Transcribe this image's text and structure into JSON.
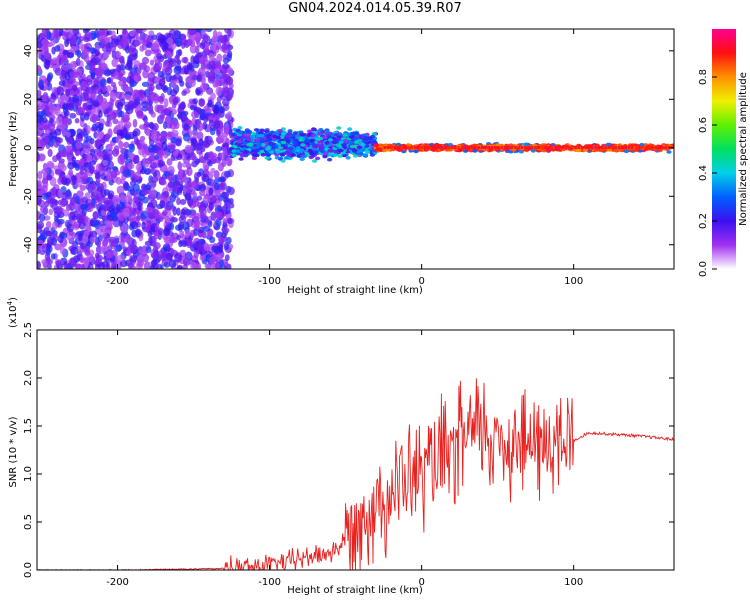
{
  "title": "GN04.2024.014.05.39.R07",
  "chart_data": [
    {
      "type": "heatmap",
      "xlabel": "Height of straight line (km)",
      "ylabel": "Frequency (Hz)",
      "xlim": [
        -253,
        166
      ],
      "ylim": [
        -50,
        49
      ],
      "xticks": [
        -200,
        -100,
        0,
        100
      ],
      "yticks": [
        -40,
        -20,
        0,
        20,
        40
      ],
      "grid": false,
      "colorbar": {
        "label": "Normalized spectral amplitude",
        "range": [
          0,
          1
        ],
        "ticks": [
          "0.0",
          "0.2",
          "0.4",
          "0.6",
          "0.8"
        ],
        "colors": [
          "#ffffff",
          "#a030f0",
          "#3a10f0",
          "#0060ff",
          "#00d0e8",
          "#00e060",
          "#60f000",
          "#f0f000",
          "#ff9000",
          "#ff1010",
          "#ff0090"
        ]
      },
      "regions": [
        {
          "x": [
            -253,
            -125
          ],
          "freq_range": [
            -50,
            49
          ],
          "amplitude": [
            0.0,
            0.15
          ]
        },
        {
          "x": [
            -125,
            -30
          ],
          "freq_range": [
            -6,
            9
          ],
          "amplitude": [
            0.1,
            0.45
          ]
        },
        {
          "x": [
            -30,
            166
          ],
          "freq_range": [
            -2,
            2
          ],
          "amplitude": [
            0.8,
            0.95
          ]
        }
      ]
    },
    {
      "type": "line",
      "xlabel": "Height of straight line (km)",
      "ylabel": "SNR (10 * v/v)",
      "y_exponent": "4",
      "xlim": [
        -253,
        166
      ],
      "ylim": [
        0,
        2.5
      ],
      "xticks": [
        -200,
        -100,
        0,
        100
      ],
      "yticks": [
        "0.0",
        "0.5",
        "1.0",
        "1.5",
        "2.0",
        "2.5"
      ],
      "grid": false,
      "series": [
        {
          "color": "#e8201e",
          "x": [
            -253,
            -200,
            -150,
            -120,
            -100,
            -90,
            -80,
            -70,
            -60,
            -50,
            -40,
            -30,
            -20,
            -10,
            0,
            10,
            20,
            30,
            40,
            50,
            60,
            70,
            80,
            90,
            100,
            110,
            120,
            140,
            166
          ],
          "y": [
            0.0,
            0.0,
            0.01,
            0.02,
            0.05,
            0.08,
            0.12,
            0.15,
            0.18,
            0.3,
            0.55,
            0.7,
            0.8,
            0.95,
            1.0,
            1.1,
            1.2,
            1.4,
            1.45,
            1.35,
            1.35,
            1.3,
            1.3,
            1.3,
            1.35,
            1.43,
            1.42,
            1.4,
            1.36
          ]
        }
      ]
    }
  ]
}
